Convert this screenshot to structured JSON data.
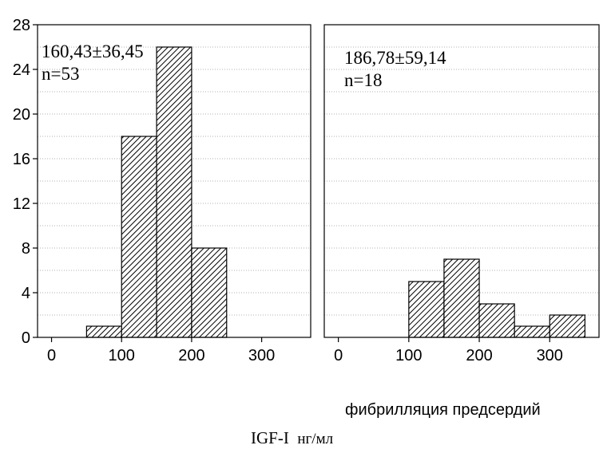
{
  "chart_data": [
    {
      "type": "bar",
      "title": "",
      "xlabel": "",
      "ylabel": "",
      "bin_edges": [
        50,
        100,
        150,
        200,
        250
      ],
      "values": [
        1,
        18,
        26,
        8
      ],
      "xlim": [
        -20,
        370
      ],
      "xticks": [
        "0",
        "100",
        "200",
        "300"
      ],
      "ylim": [
        0,
        28
      ],
      "yticks": [
        "0",
        "4",
        "8",
        "12",
        "16",
        "20",
        "24",
        "28"
      ],
      "grid": "horizontal-dotted",
      "annotation": [
        "160,43±36,45",
        "n=53"
      ]
    },
    {
      "type": "bar",
      "title": "",
      "xlabel": "",
      "ylabel": "",
      "bin_edges": [
        100,
        150,
        200,
        250,
        300,
        350
      ],
      "values": [
        5,
        7,
        3,
        1,
        2
      ],
      "xlim": [
        -20,
        370
      ],
      "xticks": [
        "0",
        "100",
        "200",
        "300"
      ],
      "ylim": [
        0,
        28
      ],
      "grid": "horizontal-dotted",
      "annotation": [
        "186,78±59,14",
        "n=18"
      ]
    }
  ],
  "captions": {
    "subplot": "фибрилляция предсердий",
    "main": "IGF-I",
    "unit": "нг/мл"
  }
}
